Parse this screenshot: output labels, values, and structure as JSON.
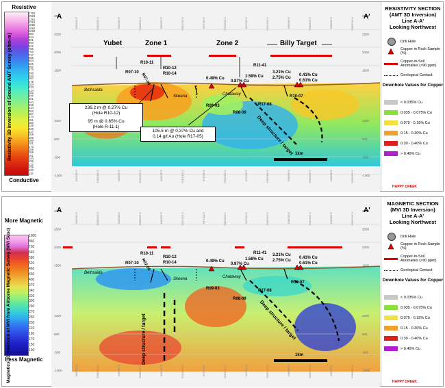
{
  "resistivity_scale": {
    "top_label": "Resistive",
    "bottom_label": "Conductive",
    "axis_title": "Resistivity 3D Inversion of Ground AMT Survey",
    "unit": "(ohm-m)",
    "values": [
      "1783",
      "1593",
      "1361",
      "1216",
      "1085",
      "1062",
      "1083",
      "983",
      "943",
      "901",
      "860",
      "822",
      "785",
      "750",
      "717",
      "685",
      "654",
      "625",
      "597",
      "570",
      "544",
      "520",
      "497",
      "475",
      "454",
      "433",
      "414",
      "395",
      "377",
      "361",
      "344",
      "329",
      "314",
      "300",
      "287",
      "274",
      "261",
      "250",
      "239",
      "228",
      "217",
      "208",
      "199",
      "190",
      "181",
      "173",
      "165",
      "158",
      "151",
      "144",
      "138",
      "132",
      "126",
      "120",
      "115"
    ],
    "colors": [
      "#ffeef8",
      "#f8c0ec",
      "#f090e4",
      "#e060dc",
      "#b040d8",
      "#8040e0",
      "#5060e8",
      "#4080f0",
      "#30a0f0",
      "#30c0f0",
      "#30d8e8",
      "#40e8d0",
      "#60f0b0",
      "#80f090",
      "#a0f070",
      "#c0f050",
      "#e0f040",
      "#f8e830",
      "#f8c828",
      "#f8a020",
      "#f07818",
      "#e85010",
      "#e03010",
      "#d01810",
      "#c80808"
    ]
  },
  "magnetic_scale": {
    "top_label": "More Magnetic",
    "bottom_label": "Less Magnetic",
    "axis_title": "Magnetics 3D Inversion of MVI from Airborne Magnetic Survey",
    "unit": "(MVI Susc)",
    "values": [
      "1000",
      "860",
      "700",
      "640",
      "580",
      "520",
      "460",
      "430",
      "400",
      "370",
      "340",
      "320",
      "300",
      "290",
      "270",
      "250",
      "230",
      "210",
      "190",
      "170",
      "150",
      "130"
    ],
    "colors": [
      "#f8c8f0",
      "#f0a0e8",
      "#e070d8",
      "#d03050",
      "#e84030",
      "#f06020",
      "#f08020",
      "#f0a030",
      "#f0c040",
      "#e8e050",
      "#c0f060",
      "#90f080",
      "#60e8a0",
      "#40d8c8",
      "#30c0e8",
      "#3098f0",
      "#3070f0",
      "#3050e8",
      "#2838d8",
      "#2020c8",
      "#1818b0",
      "#101090"
    ]
  },
  "top_panel": {
    "legend_title_lines": [
      "RESISTIVITY SECTION",
      "(AMT 3D Inversion)",
      "Line A-A'",
      "Looking Northwest"
    ]
  },
  "bottom_panel": {
    "legend_title_lines": [
      "MAGNETIC SECTION",
      "(MVI 3D Inversion)",
      "Line A-A'",
      "Looking Northwest"
    ]
  },
  "section": {
    "end_left": "A",
    "end_right": "A'",
    "elevation_ticks": [
      "3000",
      "2500",
      "2000",
      "1500",
      "1000",
      "500",
      "-500",
      "-1000"
    ],
    "easting_ticks": [
      "645500 E",
      "5580000 N",
      "646000 E",
      "5580500 N",
      "646500 E",
      "5581000 N",
      "647000 E",
      "5581500 N",
      "647500 E",
      "5582000 N",
      "648000 E",
      "5582500 N",
      "648500 E",
      "5583000 N"
    ],
    "zones": [
      "Yubet",
      "Zone 1",
      "Zone 2",
      "Billy Target"
    ],
    "drill_holes": [
      "R10-11",
      "R07-10",
      "R07-06",
      "R10-12",
      "R10-14",
      "R09-03",
      "R08-09",
      "R17-08",
      "R11-41",
      "R10-07"
    ],
    "geology": [
      "Bethsaida",
      "Skeena",
      "Chataway"
    ],
    "rock_samples": [
      "0.49% Cu",
      "1.58% Cu",
      "0.87% Cu",
      "3.21% Cu",
      "2.75% Cu",
      "0.41% Cu",
      "0.61% Cu"
    ],
    "deep_target": "Deep structure / target",
    "scale_bar": "1km",
    "interval_box_1_lines": [
      "236.2 m @ 0.27% Cu",
      "(Hole R10-12)",
      "95 m @ 0.65% Cu",
      "(Hole R-11-1)"
    ],
    "interval_box_2_lines": [
      "105.5 m @ 0.37% Cu and",
      "0.14 g/t Au (Hole R17-05)"
    ]
  },
  "legend": {
    "drill_hole": "Drill Hole",
    "rock_sample": "Copper in Rock Sample (%)",
    "soil": "Copper-in-Soil Anomalies (>90 ppm)",
    "contact": "Geological Contact",
    "downhole_title": "Downhole Values for Copper",
    "bins": [
      {
        "label": "< 0.035% Cu",
        "color": "#c8c8c8"
      },
      {
        "label": "0.035 - 0.075% Cu",
        "color": "#8ae03c"
      },
      {
        "label": "0.075 - 0.15% Cu",
        "color": "#f0e040"
      },
      {
        "label": "0.15 - 0.30% Cu",
        "color": "#f0a030"
      },
      {
        "label": "0.30 - 0.40% Cu",
        "color": "#e02020"
      },
      {
        "label": "> 0.40% Cu",
        "color": "#b020d0"
      }
    ],
    "brand": "HAPPY CREEK"
  }
}
